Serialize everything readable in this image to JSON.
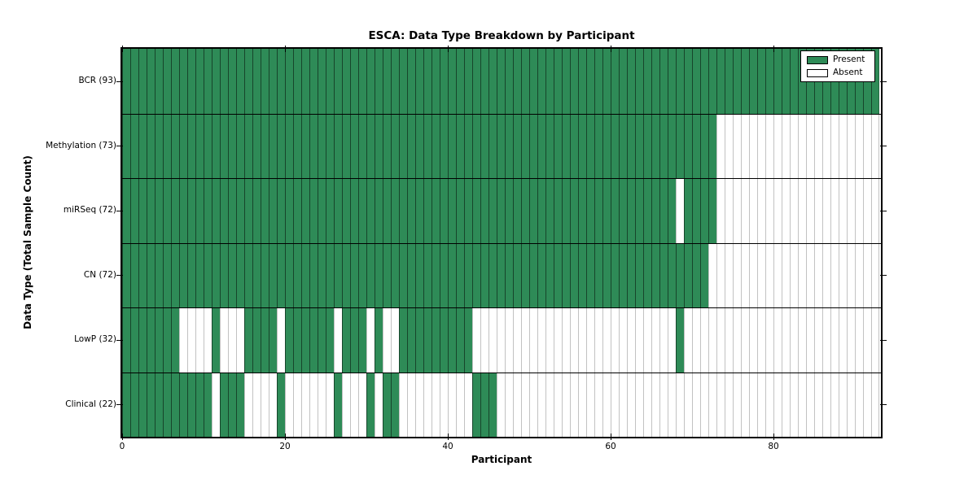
{
  "chart_data": {
    "type": "heatmap",
    "title": "ESCA: Data Type Breakdown by Participant",
    "xlabel": "Participant",
    "ylabel": "Data Type (Total Sample Count)",
    "x_ticks": [
      0,
      20,
      40,
      60,
      80
    ],
    "x_range": [
      0,
      93.2
    ],
    "n_participants": 93,
    "grid": "cell-borders",
    "legend_position": "upper-right",
    "legend": [
      {
        "label": "Present",
        "color": "#2e8b57"
      },
      {
        "label": "Absent",
        "color": "#ffffff"
      }
    ],
    "colors": {
      "present": "#2e8b57",
      "absent": "#ffffff",
      "axis": "#000000"
    },
    "rows": [
      {
        "name": "BCR",
        "label": "BCR (93)",
        "total_samples": 93,
        "present_ranges": [
          [
            0,
            92
          ]
        ]
      },
      {
        "name": "Methylation",
        "label": "Methylation (73)",
        "total_samples": 73,
        "present_ranges": [
          [
            0,
            72
          ]
        ]
      },
      {
        "name": "miRSeq",
        "label": "miRSeq (72)",
        "total_samples": 72,
        "present_ranges": [
          [
            0,
            67
          ],
          [
            69,
            72
          ]
        ]
      },
      {
        "name": "CN",
        "label": "CN (72)",
        "total_samples": 72,
        "present_ranges": [
          [
            0,
            71
          ]
        ]
      },
      {
        "name": "LowP",
        "label": "LowP (32)",
        "total_samples": 32,
        "present_ranges": [
          [
            0,
            6
          ],
          [
            11,
            11
          ],
          [
            15,
            18
          ],
          [
            20,
            25
          ],
          [
            27,
            29
          ],
          [
            31,
            31
          ],
          [
            34,
            42
          ],
          [
            68,
            68
          ]
        ]
      },
      {
        "name": "Clinical",
        "label": "Clinical (22)",
        "total_samples": 22,
        "present_ranges": [
          [
            0,
            10
          ],
          [
            12,
            14
          ],
          [
            19,
            19
          ],
          [
            26,
            26
          ],
          [
            30,
            30
          ],
          [
            32,
            33
          ],
          [
            43,
            45
          ]
        ]
      }
    ]
  }
}
